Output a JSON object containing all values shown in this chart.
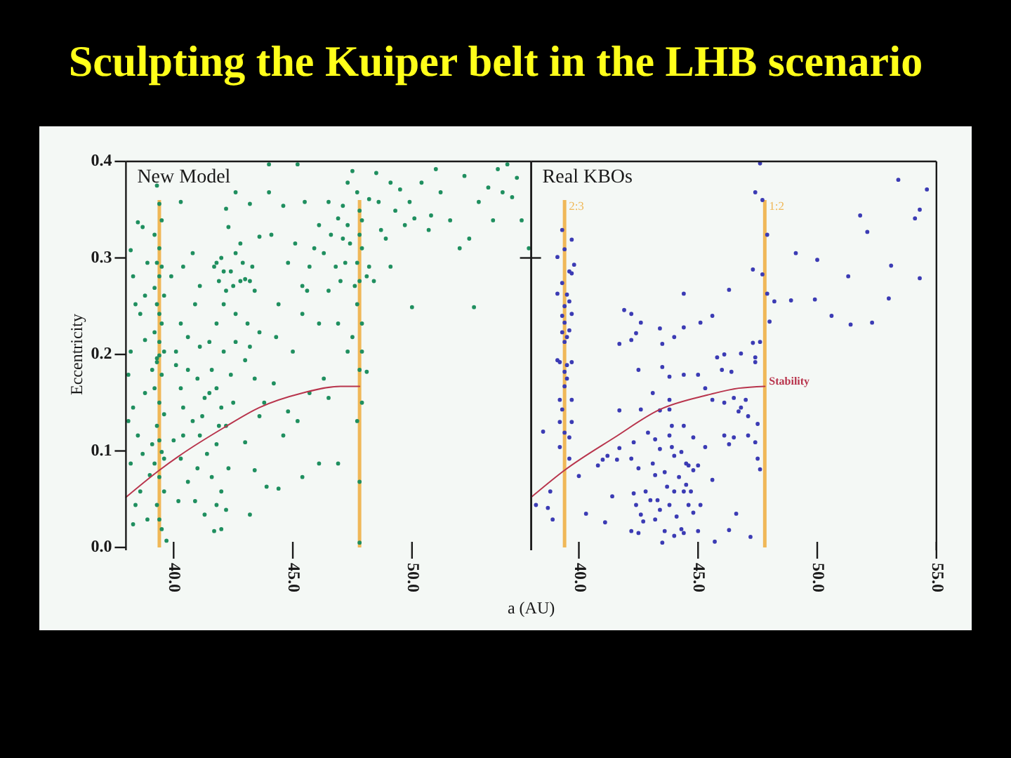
{
  "chart_data": [
    {
      "type": "scatter",
      "title": "Sculpting the Kuiper belt in the LHB scenario",
      "ylabel": "Eccentricity",
      "annotations": [
        "New Model"
      ],
      "xlim": [
        38,
        55
      ],
      "ylim": [
        0,
        0.4
      ],
      "xticks": [
        {
          "value": 40,
          "label": "40.0"
        },
        {
          "value": 45,
          "label": "45.0"
        },
        {
          "value": 50,
          "label": "50.0"
        }
      ],
      "yticks": [
        {
          "value": 0,
          "label": "0.0"
        },
        0.1,
        0.2,
        0.3,
        0.4
      ],
      "ref_lines": [
        {
          "axis": "x",
          "value": 39.4,
          "color": "#f0b858"
        },
        {
          "axis": "x",
          "value": 47.8,
          "color": "#f0b858"
        }
      ],
      "series": [
        {
          "marker": "circle",
          "color": "#1f8f5f",
          "x": [
            39.3,
            39.4,
            39.5,
            39.2,
            39.4,
            39.3,
            39.5,
            39.4,
            39.2,
            39.6,
            39.3,
            39.4,
            39.5,
            39.2,
            39.4,
            39.6,
            39.3,
            38.2,
            38.5,
            38.7,
            38.3,
            38.8,
            38.6,
            38.8,
            38.2,
            38.9,
            38.4,
            40.3,
            40.8,
            39.9,
            40.4,
            41.1,
            40.3,
            40.6,
            40.1,
            41.1,
            40.9,
            41.7,
            42.0,
            41.9,
            42.2,
            42.4,
            42.6,
            42.8,
            43.0,
            43.3,
            43.4,
            42.1,
            41.8,
            42.6,
            43.1,
            43.6,
            42.3,
            42.2,
            42.6,
            43.2,
            43.6,
            42.1,
            42.6,
            43.2,
            41.5,
            42.8,
            41.8,
            42.1,
            42.5,
            42.9,
            43.2,
            44.0,
            44.1,
            44.4,
            44.8,
            45.1,
            45.4,
            45.6,
            45.7,
            45.4,
            45.9,
            44.3,
            45.0,
            46.1,
            45.5,
            44.6,
            44.0,
            45.2,
            46.1,
            46.5,
            46.9,
            47.1,
            47.3,
            47.5,
            47.7,
            47.9,
            47.4,
            47.7,
            48.1,
            47.2,
            46.8,
            47.0,
            46.5,
            47.7,
            47.9,
            47.5,
            46.9,
            46.3,
            46.6,
            47.9,
            48.2,
            47.6,
            47.9,
            47.3,
            47.8,
            47.8,
            47.8,
            47.3,
            47.1,
            48.5,
            48.9,
            49.3,
            49.5,
            49.9,
            50.1,
            48.4,
            48.7,
            49.1,
            49.7,
            48.2,
            50.0,
            49.1,
            48.6,
            50.4,
            50.8,
            51.2,
            51.6,
            52.0,
            52.4,
            52.8,
            53.2,
            53.6,
            54.0,
            54.2,
            54.6,
            54.9,
            52.6,
            51.0,
            53.4,
            53.8,
            52.2,
            54.4,
            50.7,
            39.4,
            39.3,
            39.5,
            39.2,
            39.4,
            39.6,
            39.3,
            39.4,
            39.5,
            39.2,
            39.4,
            39.6,
            39.3,
            39.4,
            39.5,
            39.7,
            39.1,
            39.1,
            39.6,
            38.1,
            38.3,
            38.5,
            38.2,
            38.6,
            38.9,
            38.3,
            38.7,
            38.8,
            38.1,
            39.0,
            38.4,
            40.1,
            40.3,
            40.4,
            40.8,
            41.0,
            41.3,
            41.6,
            41.8,
            42.0,
            42.2,
            41.8,
            41.4,
            41.0,
            41.6,
            42.0,
            41.8,
            42.2,
            40.6,
            40.3,
            40.0,
            41.1,
            42.4,
            42.3,
            41.7,
            41.3,
            40.9,
            40.2,
            42.0,
            42.5,
            40.6,
            40.4,
            41.2,
            41.9,
            41.5,
            43.0,
            43.4,
            43.8,
            44.2,
            44.6,
            45.2,
            45.4,
            46.1,
            46.5,
            46.9,
            43.2,
            43.9,
            44.4,
            43.6,
            44.8,
            45.7,
            46.3,
            43.0,
            43.4,
            47.8,
            47.7,
            47.8,
            47.8,
            48.1,
            47.9
          ],
          "values": [
            0.375,
            0.356,
            0.339,
            0.324,
            0.31,
            0.295,
            0.291,
            0.281,
            0.269,
            0.261,
            0.252,
            0.242,
            0.232,
            0.223,
            0.213,
            0.203,
            0.196,
            0.308,
            0.337,
            0.332,
            0.281,
            0.261,
            0.242,
            0.215,
            0.203,
            0.295,
            0.252,
            0.358,
            0.305,
            0.281,
            0.291,
            0.271,
            0.232,
            0.218,
            0.203,
            0.208,
            0.252,
            0.291,
            0.3,
            0.276,
            0.266,
            0.286,
            0.305,
            0.276,
            0.278,
            0.291,
            0.266,
            0.252,
            0.232,
            0.242,
            0.232,
            0.223,
            0.332,
            0.351,
            0.368,
            0.356,
            0.322,
            0.203,
            0.213,
            0.208,
            0.213,
            0.315,
            0.295,
            0.286,
            0.271,
            0.295,
            0.276,
            0.397,
            0.324,
            0.252,
            0.295,
            0.315,
            0.271,
            0.266,
            0.291,
            0.242,
            0.31,
            0.218,
            0.203,
            0.232,
            0.358,
            0.354,
            0.368,
            0.397,
            0.334,
            0.358,
            0.341,
            0.354,
            0.378,
            0.39,
            0.368,
            0.339,
            0.315,
            0.295,
            0.281,
            0.295,
            0.291,
            0.276,
            0.266,
            0.252,
            0.232,
            0.218,
            0.232,
            0.305,
            0.324,
            0.31,
            0.291,
            0.271,
            0.203,
            0.203,
            0.349,
            0.324,
            0.276,
            0.334,
            0.32,
            0.388,
            0.32,
            0.349,
            0.371,
            0.358,
            0.341,
            0.276,
            0.329,
            0.378,
            0.334,
            0.361,
            0.249,
            0.291,
            0.358,
            0.378,
            0.344,
            0.368,
            0.339,
            0.31,
            0.32,
            0.358,
            0.373,
            0.392,
            0.397,
            0.363,
            0.339,
            0.31,
            0.249,
            0.392,
            0.339,
            0.368,
            0.385,
            0.383,
            0.329,
            0.199,
            0.192,
            0.179,
            0.165,
            0.15,
            0.138,
            0.126,
            0.111,
            0.099,
            0.087,
            0.073,
            0.058,
            0.044,
            0.029,
            0.019,
            0.007,
            0.184,
            0.107,
            0.092,
            0.179,
            0.145,
            0.116,
            0.087,
            0.058,
            0.029,
            0.024,
            0.097,
            0.16,
            0.131,
            0.075,
            0.044,
            0.189,
            0.165,
            0.145,
            0.131,
            0.175,
            0.155,
            0.184,
            0.165,
            0.145,
            0.126,
            0.107,
            0.097,
            0.082,
            0.073,
            0.058,
            0.044,
            0.039,
            0.068,
            0.092,
            0.111,
            0.116,
            0.179,
            0.082,
            0.017,
            0.034,
            0.048,
            0.048,
            0.019,
            0.15,
            0.184,
            0.116,
            0.136,
            0.126,
            0.16,
            0.194,
            0.175,
            0.15,
            0.17,
            0.116,
            0.131,
            0.073,
            0.087,
            0.155,
            0.087,
            0.034,
            0.063,
            0.061,
            0.136,
            0.141,
            0.16,
            0.175,
            0.109,
            0.08,
            0.184,
            0.131,
            0.068,
            0.005,
            0.182,
            0.15
          ]
        },
        {
          "type": "line",
          "color": "#b8344c",
          "x": [
            38.0,
            39.4,
            40.3,
            42.1,
            43.6,
            45.4,
            47.0,
            47.8
          ],
          "values": [
            0.052,
            0.08,
            0.096,
            0.124,
            0.145,
            0.16,
            0.167,
            0.167
          ]
        }
      ]
    },
    {
      "type": "scatter",
      "xlabel": "a (AU)",
      "annotations": [
        "Real KBOs",
        {
          "text": "2:3",
          "x": 39.4,
          "y": 0.36
        },
        {
          "text": "1:2",
          "x": 47.8,
          "y": 0.36
        }
      ],
      "xlim": [
        38,
        55
      ],
      "ylim": [
        0,
        0.4
      ],
      "xticks": [
        {
          "value": 40,
          "label": "40.0"
        },
        {
          "value": 45,
          "label": "45.0"
        },
        {
          "value": 50,
          "label": "50.0"
        },
        {
          "value": 55,
          "label": "55.0"
        }
      ],
      "yticks": [
        {
          "value": 0.3,
          "label": null
        }
      ],
      "tick_labels": "x",
      "ref_lines": [
        {
          "axis": "x",
          "value": 39.4,
          "color": "#f0b858"
        },
        {
          "axis": "x",
          "value": 47.8,
          "color": "#f0b858"
        }
      ],
      "series": [
        {
          "marker": "circle",
          "color": "#3b3bb4",
          "x": [
            47.6,
            53.4,
            54.6,
            47.4,
            47.7,
            54.3,
            54.1,
            51.8,
            52.1,
            47.9,
            49.1,
            50.0,
            53.1,
            47.3,
            47.7,
            51.3,
            54.3,
            44.4,
            46.3,
            47.9,
            48.2,
            48.9,
            49.9,
            53.0,
            41.9,
            42.2,
            42.6,
            43.4,
            44.4,
            45.1,
            45.6,
            48.0,
            50.6,
            51.4,
            52.3,
            42.4,
            42.2,
            41.7,
            43.5,
            44.0,
            47.3,
            47.6,
            45.8,
            46.1,
            46.8,
            47.4,
            47.4,
            39.3,
            39.7,
            39.4,
            39.1,
            39.8,
            39.6,
            39.7,
            39.3,
            39.1,
            39.5,
            39.6,
            39.4,
            39.7,
            39.3,
            39.4,
            39.6,
            39.3,
            39.5,
            39.4,
            39.1,
            39.7,
            39.2,
            39.5,
            39.4,
            39.5,
            39.4,
            39.2,
            39.7,
            39.3,
            39.2,
            39.7,
            39.4,
            39.6,
            39.2,
            39.6,
            38.5,
            38.2,
            38.8,
            38.7,
            38.9,
            40.0,
            40.3,
            41.1,
            41.4,
            40.8,
            41.0,
            41.2,
            41.6,
            41.7,
            41.7,
            42.3,
            42.6,
            42.5,
            43.1,
            43.4,
            43.8,
            43.8,
            43.5,
            43.8,
            44.4,
            45.0,
            45.3,
            46.0,
            46.4,
            45.6,
            46.1,
            46.5,
            47.0,
            46.7,
            47.1,
            47.5,
            46.8,
            46.1,
            46.5,
            47.1,
            47.4,
            46.3,
            47.5,
            47.6,
            46.6,
            47.2,
            46.3,
            45.7,
            42.2,
            42.5,
            42.3,
            42.4,
            42.6,
            42.2,
            42.5,
            42.8,
            43.1,
            43.2,
            43.3,
            43.4,
            43.2,
            43.6,
            43.5,
            43.7,
            43.8,
            44.0,
            44.1,
            44.3,
            44.2,
            44.3,
            44.5,
            44.6,
            44.5,
            44.7,
            44.6,
            44.8,
            44.8,
            44.4,
            45.0,
            45.1,
            44.0,
            43.9,
            43.9,
            44.4,
            44.8,
            45.3,
            45.6,
            45.0,
            43.4,
            43.2,
            42.9,
            43.8,
            43.0,
            42.7,
            44.0,
            44.4,
            43.6
          ],
          "values": [
            0.398,
            0.381,
            0.371,
            0.368,
            0.36,
            0.35,
            0.341,
            0.344,
            0.327,
            0.324,
            0.305,
            0.298,
            0.292,
            0.288,
            0.283,
            0.281,
            0.279,
            0.263,
            0.267,
            0.263,
            0.255,
            0.256,
            0.257,
            0.258,
            0.246,
            0.242,
            0.233,
            0.227,
            0.228,
            0.233,
            0.24,
            0.234,
            0.24,
            0.231,
            0.233,
            0.222,
            0.215,
            0.211,
            0.211,
            0.218,
            0.212,
            0.213,
            0.197,
            0.2,
            0.201,
            0.197,
            0.192,
            0.329,
            0.319,
            0.309,
            0.301,
            0.293,
            0.286,
            0.284,
            0.274,
            0.263,
            0.262,
            0.255,
            0.25,
            0.242,
            0.24,
            0.233,
            0.225,
            0.223,
            0.218,
            0.213,
            0.194,
            0.192,
            0.192,
            0.189,
            0.182,
            0.175,
            0.167,
            0.153,
            0.153,
            0.143,
            0.13,
            0.13,
            0.119,
            0.114,
            0.104,
            0.092,
            0.12,
            0.044,
            0.058,
            0.041,
            0.029,
            0.074,
            0.035,
            0.026,
            0.053,
            0.085,
            0.091,
            0.095,
            0.091,
            0.142,
            0.103,
            0.109,
            0.143,
            0.184,
            0.16,
            0.142,
            0.153,
            0.143,
            0.187,
            0.177,
            0.179,
            0.179,
            0.165,
            0.184,
            0.182,
            0.153,
            0.15,
            0.155,
            0.153,
            0.141,
            0.136,
            0.128,
            0.145,
            0.116,
            0.114,
            0.116,
            0.109,
            0.107,
            0.092,
            0.081,
            0.035,
            0.011,
            0.018,
            0.006,
            0.092,
            0.082,
            0.056,
            0.044,
            0.034,
            0.017,
            0.015,
            0.058,
            0.087,
            0.075,
            0.049,
            0.039,
            0.029,
            0.017,
            0.005,
            0.063,
            0.044,
            0.058,
            0.032,
            0.019,
            0.073,
            0.099,
            0.087,
            0.085,
            0.065,
            0.058,
            0.044,
            0.08,
            0.036,
            0.015,
            0.017,
            0.044,
            0.095,
            0.104,
            0.126,
            0.126,
            0.114,
            0.104,
            0.07,
            0.085,
            0.102,
            0.112,
            0.119,
            0.116,
            0.049,
            0.027,
            0.012,
            0.058,
            0.078
          ]
        },
        {
          "type": "line",
          "name": "Stability",
          "color": "#b8344c",
          "x": [
            38.0,
            39.4,
            41.5,
            43.4,
            45.4,
            46.7,
            47.8
          ],
          "values": [
            0.052,
            0.08,
            0.114,
            0.143,
            0.158,
            0.165,
            0.167
          ]
        }
      ]
    }
  ]
}
